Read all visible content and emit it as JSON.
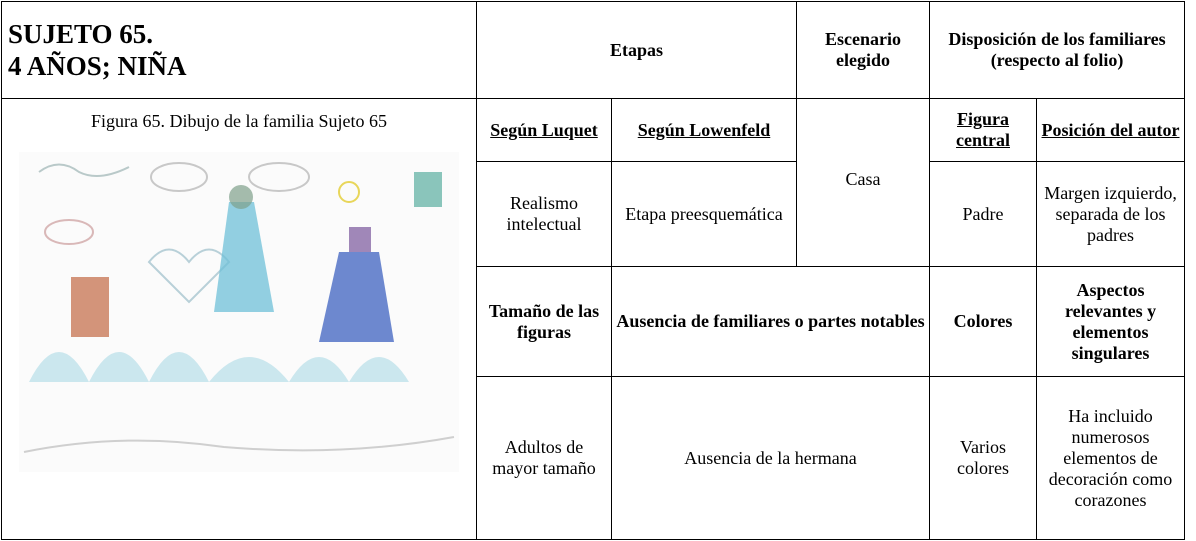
{
  "header": {
    "title_lines": [
      "SUJETO 65.",
      "4 AÑOS; NIÑA"
    ],
    "etapas": "Etapas",
    "escenario": "Escenario elegido",
    "disposicion_lines": [
      "Disposición de los familiares",
      "(respecto al folio)"
    ]
  },
  "figure": {
    "caption": "Figura 65. Dibujo de la familia Sujeto 65"
  },
  "table": {
    "rows": [
      [
        "Según Luquet",
        "Según Lowenfeld",
        "Casa",
        "Figura central",
        "Posición del autor"
      ],
      [
        "Realismo intelectual",
        "Etapa preesquemática",
        "Padre",
        "Margen izquierdo, separada de los padres"
      ],
      [
        "Tamaño de las figuras",
        "Ausencia de familiares o partes notables",
        "Colores",
        "Aspectos relevantes y elementos singulares"
      ],
      [
        "Adultos de mayor tamaño",
        "Ausencia de la hermana",
        "Varios colores",
        "Ha incluido numerosos elementos de decoración como corazones"
      ]
    ]
  }
}
